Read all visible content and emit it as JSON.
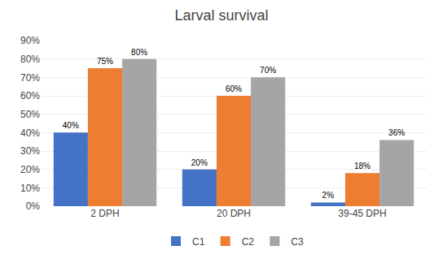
{
  "chart_data": {
    "type": "bar",
    "title": "Larval survival",
    "categories": [
      "2 DPH",
      "20 DPH",
      "39-45 DPH"
    ],
    "series": [
      {
        "name": "C1",
        "color": "#4472C4",
        "values": [
          40,
          20,
          2
        ],
        "value_labels": [
          "40%",
          "20%",
          "2%"
        ]
      },
      {
        "name": "C2",
        "color": "#ED7D31",
        "values": [
          75,
          60,
          18
        ],
        "value_labels": [
          "75%",
          "60%",
          "18%"
        ]
      },
      {
        "name": "C3",
        "color": "#A5A5A5",
        "values": [
          80,
          70,
          36
        ],
        "value_labels": [
          "80%",
          "70%",
          "36%"
        ]
      }
    ],
    "ylim": [
      0,
      90
    ],
    "yticks": [
      {
        "value": 0,
        "label": "0%"
      },
      {
        "value": 10,
        "label": "10%"
      },
      {
        "value": 20,
        "label": "20%"
      },
      {
        "value": 30,
        "label": "30%"
      },
      {
        "value": 40,
        "label": "40%"
      },
      {
        "value": 50,
        "label": "50%"
      },
      {
        "value": 60,
        "label": "60%"
      },
      {
        "value": 70,
        "label": "70%"
      },
      {
        "value": 80,
        "label": "80%"
      },
      {
        "value": 90,
        "label": "90%"
      }
    ],
    "grid": true,
    "legend": "bottom",
    "data_labels": true
  }
}
